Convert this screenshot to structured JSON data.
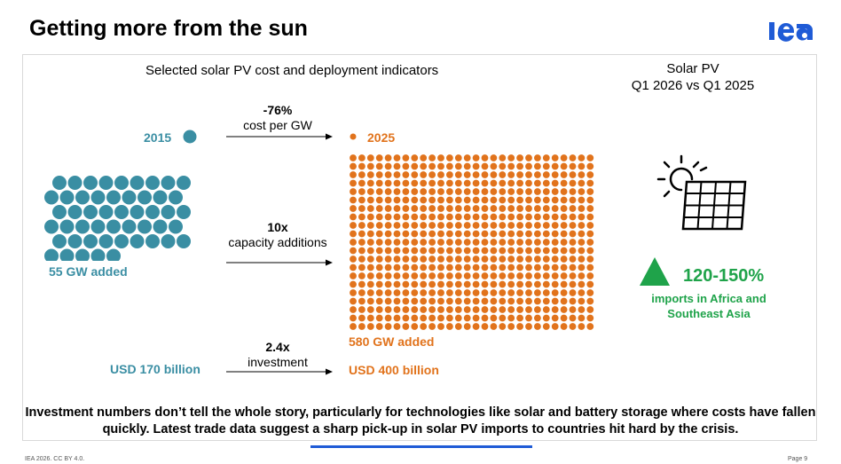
{
  "title": "Getting more from the sun",
  "logo": "iea",
  "subtitle": "Selected solar PV cost and deployment indicators",
  "right_panel": {
    "title_line1": "Solar PV",
    "title_line2": "Q1 2026 vs Q1 2025",
    "icon": "solar-panel-sun-icon",
    "change_pct": "120-150%",
    "change_label": "imports in Africa and Southeast Asia",
    "trend_icon": "up-triangle-icon"
  },
  "left": {
    "year": "2015",
    "capacity": "55 GW added",
    "investment": "USD 170 billion"
  },
  "right": {
    "year": "2025",
    "capacity": "580 GW added",
    "investment": "USD 400 billion"
  },
  "arrows": [
    {
      "value": "-76%",
      "label": "cost per GW"
    },
    {
      "value": "10x",
      "label": "capacity additions"
    },
    {
      "value": "2.4x",
      "label": "investment"
    }
  ],
  "colors": {
    "teal": "#3a8ea3",
    "orange": "#e1731c",
    "green": "#1fa34a",
    "iea_blue": "#1f5bd6"
  },
  "bottom_text": "Investment numbers don’t tell the whole story, particularly for technologies like solar and battery storage where costs have fallen quickly.  Latest trade data suggest a sharp pick-up in solar PV imports to countries hit hard by the crisis.",
  "footer_left": "IEA 2026. CC BY 4.0.",
  "footer_right": "Page 9"
}
